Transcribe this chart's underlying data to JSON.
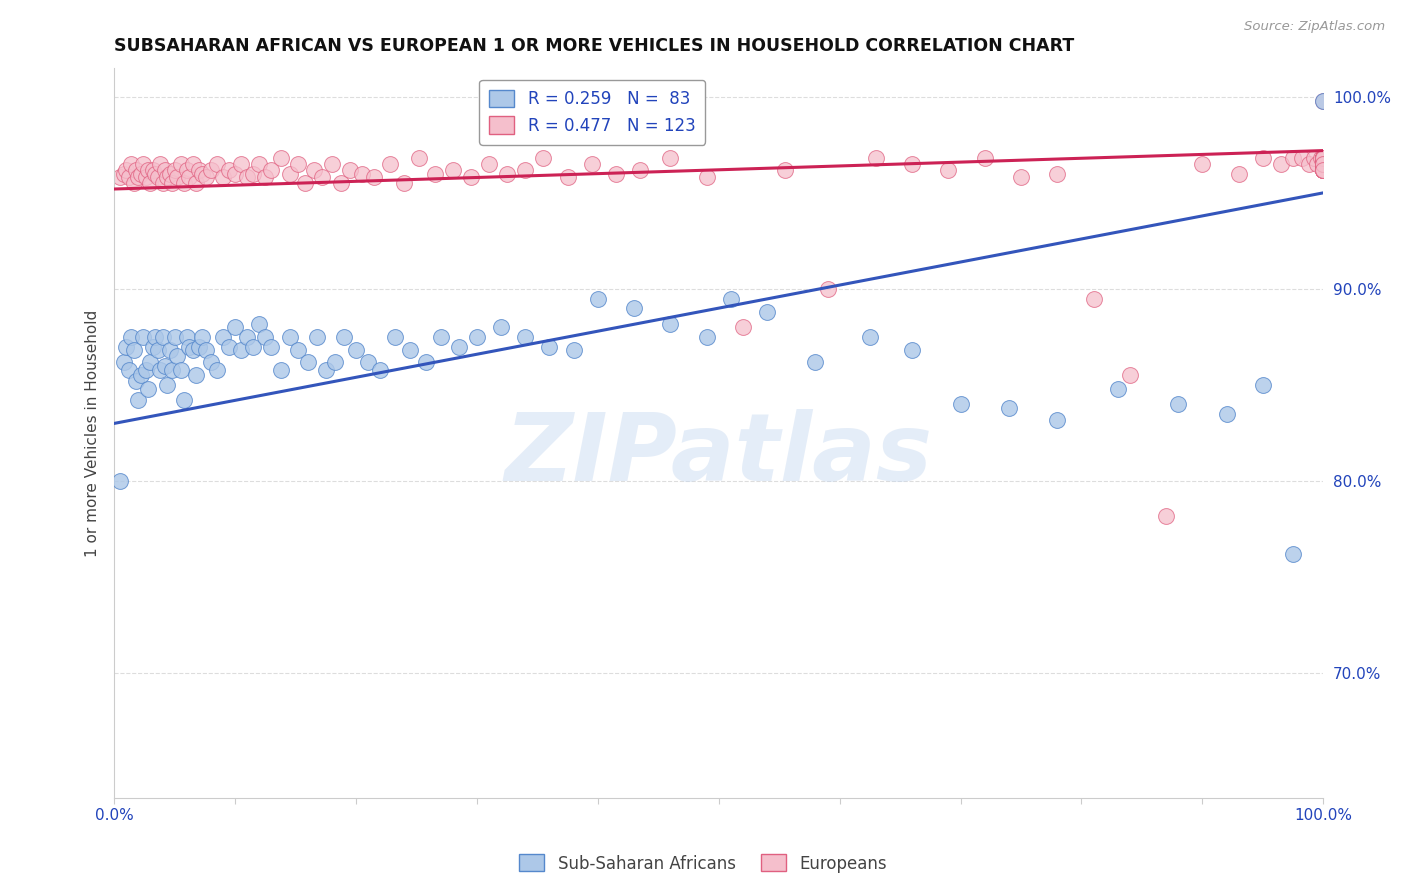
{
  "title": "SUBSAHARAN AFRICAN VS EUROPEAN 1 OR MORE VEHICLES IN HOUSEHOLD CORRELATION CHART",
  "source": "Source: ZipAtlas.com",
  "ylabel": "1 or more Vehicles in Household",
  "xlim": [
    0.0,
    1.0
  ],
  "ylim": [
    0.635,
    1.015
  ],
  "yticks": [
    0.7,
    0.8,
    0.9,
    1.0
  ],
  "ytick_labels": [
    "70.0%",
    "80.0%",
    "90.0%",
    "100.0%"
  ],
  "xtick_positions": [
    0.0,
    0.1,
    0.2,
    0.3,
    0.4,
    0.5,
    0.6,
    0.7,
    0.8,
    0.9,
    1.0
  ],
  "xtick_labels": [
    "0.0%",
    "",
    "",
    "",
    "",
    "",
    "",
    "",
    "",
    "",
    "100.0%"
  ],
  "blue_r": 0.259,
  "blue_n": 83,
  "pink_r": 0.477,
  "pink_n": 123,
  "blue_color": "#adc8e8",
  "blue_edge": "#5588cc",
  "pink_color": "#f5bfcc",
  "pink_edge": "#e06080",
  "blue_line_color": "#3355bb",
  "pink_line_color": "#cc2255",
  "legend_label_blue": "Sub-Saharan Africans",
  "legend_label_pink": "Europeans",
  "watermark": "ZIPatlas",
  "blue_line_x0": 0.0,
  "blue_line_y0": 0.83,
  "blue_line_x1": 1.0,
  "blue_line_y1": 0.95,
  "pink_line_x0": 0.0,
  "pink_line_y0": 0.952,
  "pink_line_x1": 1.0,
  "pink_line_y1": 0.972,
  "blue_x": [
    0.005,
    0.008,
    0.01,
    0.012,
    0.014,
    0.016,
    0.018,
    0.02,
    0.022,
    0.024,
    0.026,
    0.028,
    0.03,
    0.032,
    0.034,
    0.036,
    0.038,
    0.04,
    0.042,
    0.044,
    0.046,
    0.048,
    0.05,
    0.052,
    0.055,
    0.058,
    0.06,
    0.062,
    0.065,
    0.068,
    0.07,
    0.073,
    0.076,
    0.08,
    0.085,
    0.09,
    0.095,
    0.1,
    0.105,
    0.11,
    0.115,
    0.12,
    0.125,
    0.13,
    0.138,
    0.145,
    0.152,
    0.16,
    0.168,
    0.175,
    0.183,
    0.19,
    0.2,
    0.21,
    0.22,
    0.232,
    0.245,
    0.258,
    0.27,
    0.285,
    0.3,
    0.32,
    0.34,
    0.36,
    0.38,
    0.4,
    0.43,
    0.46,
    0.49,
    0.51,
    0.54,
    0.58,
    0.625,
    0.66,
    0.7,
    0.74,
    0.78,
    0.83,
    0.88,
    0.92,
    0.95,
    0.975,
    1.0
  ],
  "blue_y": [
    0.8,
    0.862,
    0.87,
    0.858,
    0.875,
    0.868,
    0.852,
    0.842,
    0.855,
    0.875,
    0.858,
    0.848,
    0.862,
    0.87,
    0.875,
    0.868,
    0.858,
    0.875,
    0.86,
    0.85,
    0.868,
    0.858,
    0.875,
    0.865,
    0.858,
    0.842,
    0.875,
    0.87,
    0.868,
    0.855,
    0.87,
    0.875,
    0.868,
    0.862,
    0.858,
    0.875,
    0.87,
    0.88,
    0.868,
    0.875,
    0.87,
    0.882,
    0.875,
    0.87,
    0.858,
    0.875,
    0.868,
    0.862,
    0.875,
    0.858,
    0.862,
    0.875,
    0.868,
    0.862,
    0.858,
    0.875,
    0.868,
    0.862,
    0.875,
    0.87,
    0.875,
    0.88,
    0.875,
    0.87,
    0.868,
    0.895,
    0.89,
    0.882,
    0.875,
    0.895,
    0.888,
    0.862,
    0.875,
    0.868,
    0.84,
    0.838,
    0.832,
    0.848,
    0.84,
    0.835,
    0.85,
    0.762,
    0.998
  ],
  "pink_x": [
    0.005,
    0.008,
    0.01,
    0.012,
    0.014,
    0.016,
    0.018,
    0.02,
    0.022,
    0.024,
    0.026,
    0.028,
    0.03,
    0.032,
    0.034,
    0.036,
    0.038,
    0.04,
    0.042,
    0.044,
    0.046,
    0.048,
    0.05,
    0.052,
    0.055,
    0.058,
    0.06,
    0.062,
    0.065,
    0.068,
    0.07,
    0.073,
    0.076,
    0.08,
    0.085,
    0.09,
    0.095,
    0.1,
    0.105,
    0.11,
    0.115,
    0.12,
    0.125,
    0.13,
    0.138,
    0.145,
    0.152,
    0.158,
    0.165,
    0.172,
    0.18,
    0.188,
    0.195,
    0.205,
    0.215,
    0.228,
    0.24,
    0.252,
    0.265,
    0.28,
    0.295,
    0.31,
    0.325,
    0.34,
    0.355,
    0.375,
    0.395,
    0.415,
    0.435,
    0.46,
    0.49,
    0.52,
    0.555,
    0.59,
    0.63,
    0.66,
    0.69,
    0.72,
    0.75,
    0.78,
    0.81,
    0.84,
    0.87,
    0.9,
    0.93,
    0.95,
    0.965,
    0.975,
    0.982,
    0.988,
    0.992,
    0.995,
    0.998,
    1.0,
    1.0,
    1.0,
    1.0,
    1.0,
    1.0,
    1.0,
    1.0,
    1.0,
    1.0,
    1.0,
    1.0,
    1.0,
    1.0,
    1.0,
    1.0,
    1.0,
    1.0,
    1.0,
    1.0,
    1.0,
    1.0,
    1.0,
    1.0,
    1.0,
    1.0,
    1.0,
    1.0,
    1.0,
    1.0
  ],
  "pink_y": [
    0.958,
    0.96,
    0.962,
    0.958,
    0.965,
    0.955,
    0.962,
    0.958,
    0.96,
    0.965,
    0.958,
    0.962,
    0.955,
    0.962,
    0.96,
    0.958,
    0.965,
    0.955,
    0.962,
    0.958,
    0.96,
    0.955,
    0.962,
    0.958,
    0.965,
    0.955,
    0.962,
    0.958,
    0.965,
    0.955,
    0.962,
    0.96,
    0.958,
    0.962,
    0.965,
    0.958,
    0.962,
    0.96,
    0.965,
    0.958,
    0.96,
    0.965,
    0.958,
    0.962,
    0.968,
    0.96,
    0.965,
    0.955,
    0.962,
    0.958,
    0.965,
    0.955,
    0.962,
    0.96,
    0.958,
    0.965,
    0.955,
    0.968,
    0.96,
    0.962,
    0.958,
    0.965,
    0.96,
    0.962,
    0.968,
    0.958,
    0.965,
    0.96,
    0.962,
    0.968,
    0.958,
    0.88,
    0.962,
    0.9,
    0.968,
    0.965,
    0.962,
    0.968,
    0.958,
    0.96,
    0.895,
    0.855,
    0.782,
    0.965,
    0.96,
    0.968,
    0.965,
    0.968,
    0.968,
    0.965,
    0.968,
    0.965,
    0.968,
    0.962,
    0.968,
    0.965,
    0.968,
    0.962,
    0.968,
    0.965,
    0.968,
    0.965,
    0.962,
    0.968,
    0.965,
    0.968,
    0.962,
    0.965,
    0.968,
    0.965,
    0.968,
    0.965,
    0.962,
    0.968,
    0.965,
    0.962,
    0.968,
    0.962,
    0.965,
    0.968,
    0.965,
    0.962,
    0.998
  ]
}
